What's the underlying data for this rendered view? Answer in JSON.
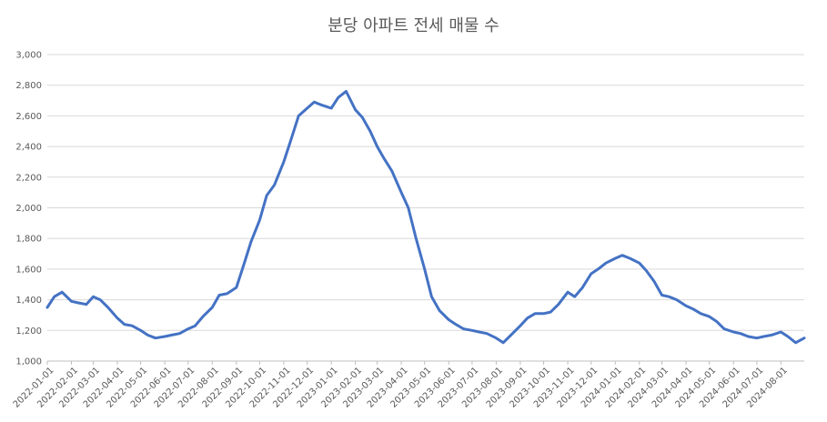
{
  "chart_data": {
    "type": "line",
    "title": "분당 아파트 전세 매물 수",
    "xlabel": "",
    "ylabel": "",
    "ylim": [
      1000,
      3000
    ],
    "yticks": [
      1000,
      1200,
      1400,
      1600,
      1800,
      2000,
      2200,
      2400,
      2600,
      2800,
      3000
    ],
    "ytick_labels": [
      "1,000",
      "1,200",
      "1,400",
      "1,600",
      "1,800",
      "2,000",
      "2,200",
      "2,400",
      "2,600",
      "2,800",
      "3,000"
    ],
    "xlim": [
      "2022-01-01",
      "2024-08-31"
    ],
    "xtick_labels": [
      "2022-01-01",
      "2022-02-01",
      "2022-03-01",
      "2022-04-01",
      "2022-05-01",
      "2022-06-01",
      "2022-07-01",
      "2022-08-01",
      "2022-09-01",
      "2022-10-01",
      "2022-11-01",
      "2022-12-01",
      "2023-01-01",
      "2023-02-01",
      "2023-03-01",
      "2023-04-01",
      "2023-05-01",
      "2023-06-01",
      "2023-07-01",
      "2023-08-01",
      "2023-09-01",
      "2023-10-01",
      "2023-11-01",
      "2023-12-01",
      "2024-01-01",
      "2024-02-01",
      "2024-03-01",
      "2024-04-01",
      "2024-05-01",
      "2024-06-01",
      "2024-07-01",
      "2024-08-01"
    ],
    "grid": true,
    "legend": "none",
    "series": [
      {
        "color": "#4472c4",
        "x": [
          "2022-01-01",
          "2022-01-10",
          "2022-01-20",
          "2022-02-01",
          "2022-02-10",
          "2022-02-20",
          "2022-03-01",
          "2022-03-10",
          "2022-03-20",
          "2022-04-01",
          "2022-04-10",
          "2022-04-20",
          "2022-05-01",
          "2022-05-10",
          "2022-05-20",
          "2022-06-01",
          "2022-06-10",
          "2022-06-20",
          "2022-07-01",
          "2022-07-10",
          "2022-07-20",
          "2022-08-01",
          "2022-08-10",
          "2022-08-20",
          "2022-09-01",
          "2022-09-10",
          "2022-09-20",
          "2022-10-01",
          "2022-10-10",
          "2022-10-20",
          "2022-11-01",
          "2022-11-10",
          "2022-11-20",
          "2022-12-01",
          "2022-12-10",
          "2022-12-20",
          "2023-01-01",
          "2023-01-10",
          "2023-01-20",
          "2023-02-01",
          "2023-02-10",
          "2023-02-20",
          "2023-03-01",
          "2023-03-10",
          "2023-03-20",
          "2023-04-01",
          "2023-04-10",
          "2023-04-20",
          "2023-05-01",
          "2023-05-10",
          "2023-05-20",
          "2023-06-01",
          "2023-06-10",
          "2023-06-20",
          "2023-07-01",
          "2023-07-10",
          "2023-07-20",
          "2023-08-01",
          "2023-08-10",
          "2023-08-20",
          "2023-09-01",
          "2023-09-10",
          "2023-09-20",
          "2023-10-01",
          "2023-10-10",
          "2023-10-20",
          "2023-11-01",
          "2023-11-10",
          "2023-11-20",
          "2023-12-01",
          "2023-12-10",
          "2023-12-20",
          "2024-01-01",
          "2024-01-10",
          "2024-01-20",
          "2024-02-01",
          "2024-02-10",
          "2024-02-20",
          "2024-03-01",
          "2024-03-10",
          "2024-03-20",
          "2024-04-01",
          "2024-04-10",
          "2024-04-20",
          "2024-05-01",
          "2024-05-10",
          "2024-05-20",
          "2024-06-01",
          "2024-06-10",
          "2024-06-20",
          "2024-07-01",
          "2024-07-10",
          "2024-07-20",
          "2024-08-01",
          "2024-08-10",
          "2024-08-20",
          "2024-08-31"
        ],
        "values": [
          1350,
          1420,
          1450,
          1390,
          1380,
          1370,
          1420,
          1400,
          1350,
          1280,
          1240,
          1230,
          1200,
          1170,
          1150,
          1160,
          1170,
          1180,
          1210,
          1230,
          1290,
          1350,
          1430,
          1440,
          1480,
          1620,
          1780,
          1920,
          2080,
          2150,
          2300,
          2440,
          2600,
          2650,
          2690,
          2670,
          2650,
          2720,
          2760,
          2640,
          2590,
          2500,
          2400,
          2320,
          2240,
          2100,
          2000,
          1800,
          1600,
          1420,
          1330,
          1270,
          1240,
          1210,
          1200,
          1190,
          1180,
          1150,
          1120,
          1170,
          1230,
          1280,
          1310,
          1310,
          1320,
          1370,
          1450,
          1420,
          1480,
          1570,
          1600,
          1640,
          1670,
          1690,
          1670,
          1640,
          1590,
          1520,
          1430,
          1420,
          1400,
          1360,
          1340,
          1310,
          1290,
          1260,
          1210,
          1190,
          1180,
          1160,
          1150,
          1160,
          1170,
          1190,
          1160,
          1120,
          1150
        ]
      }
    ]
  }
}
